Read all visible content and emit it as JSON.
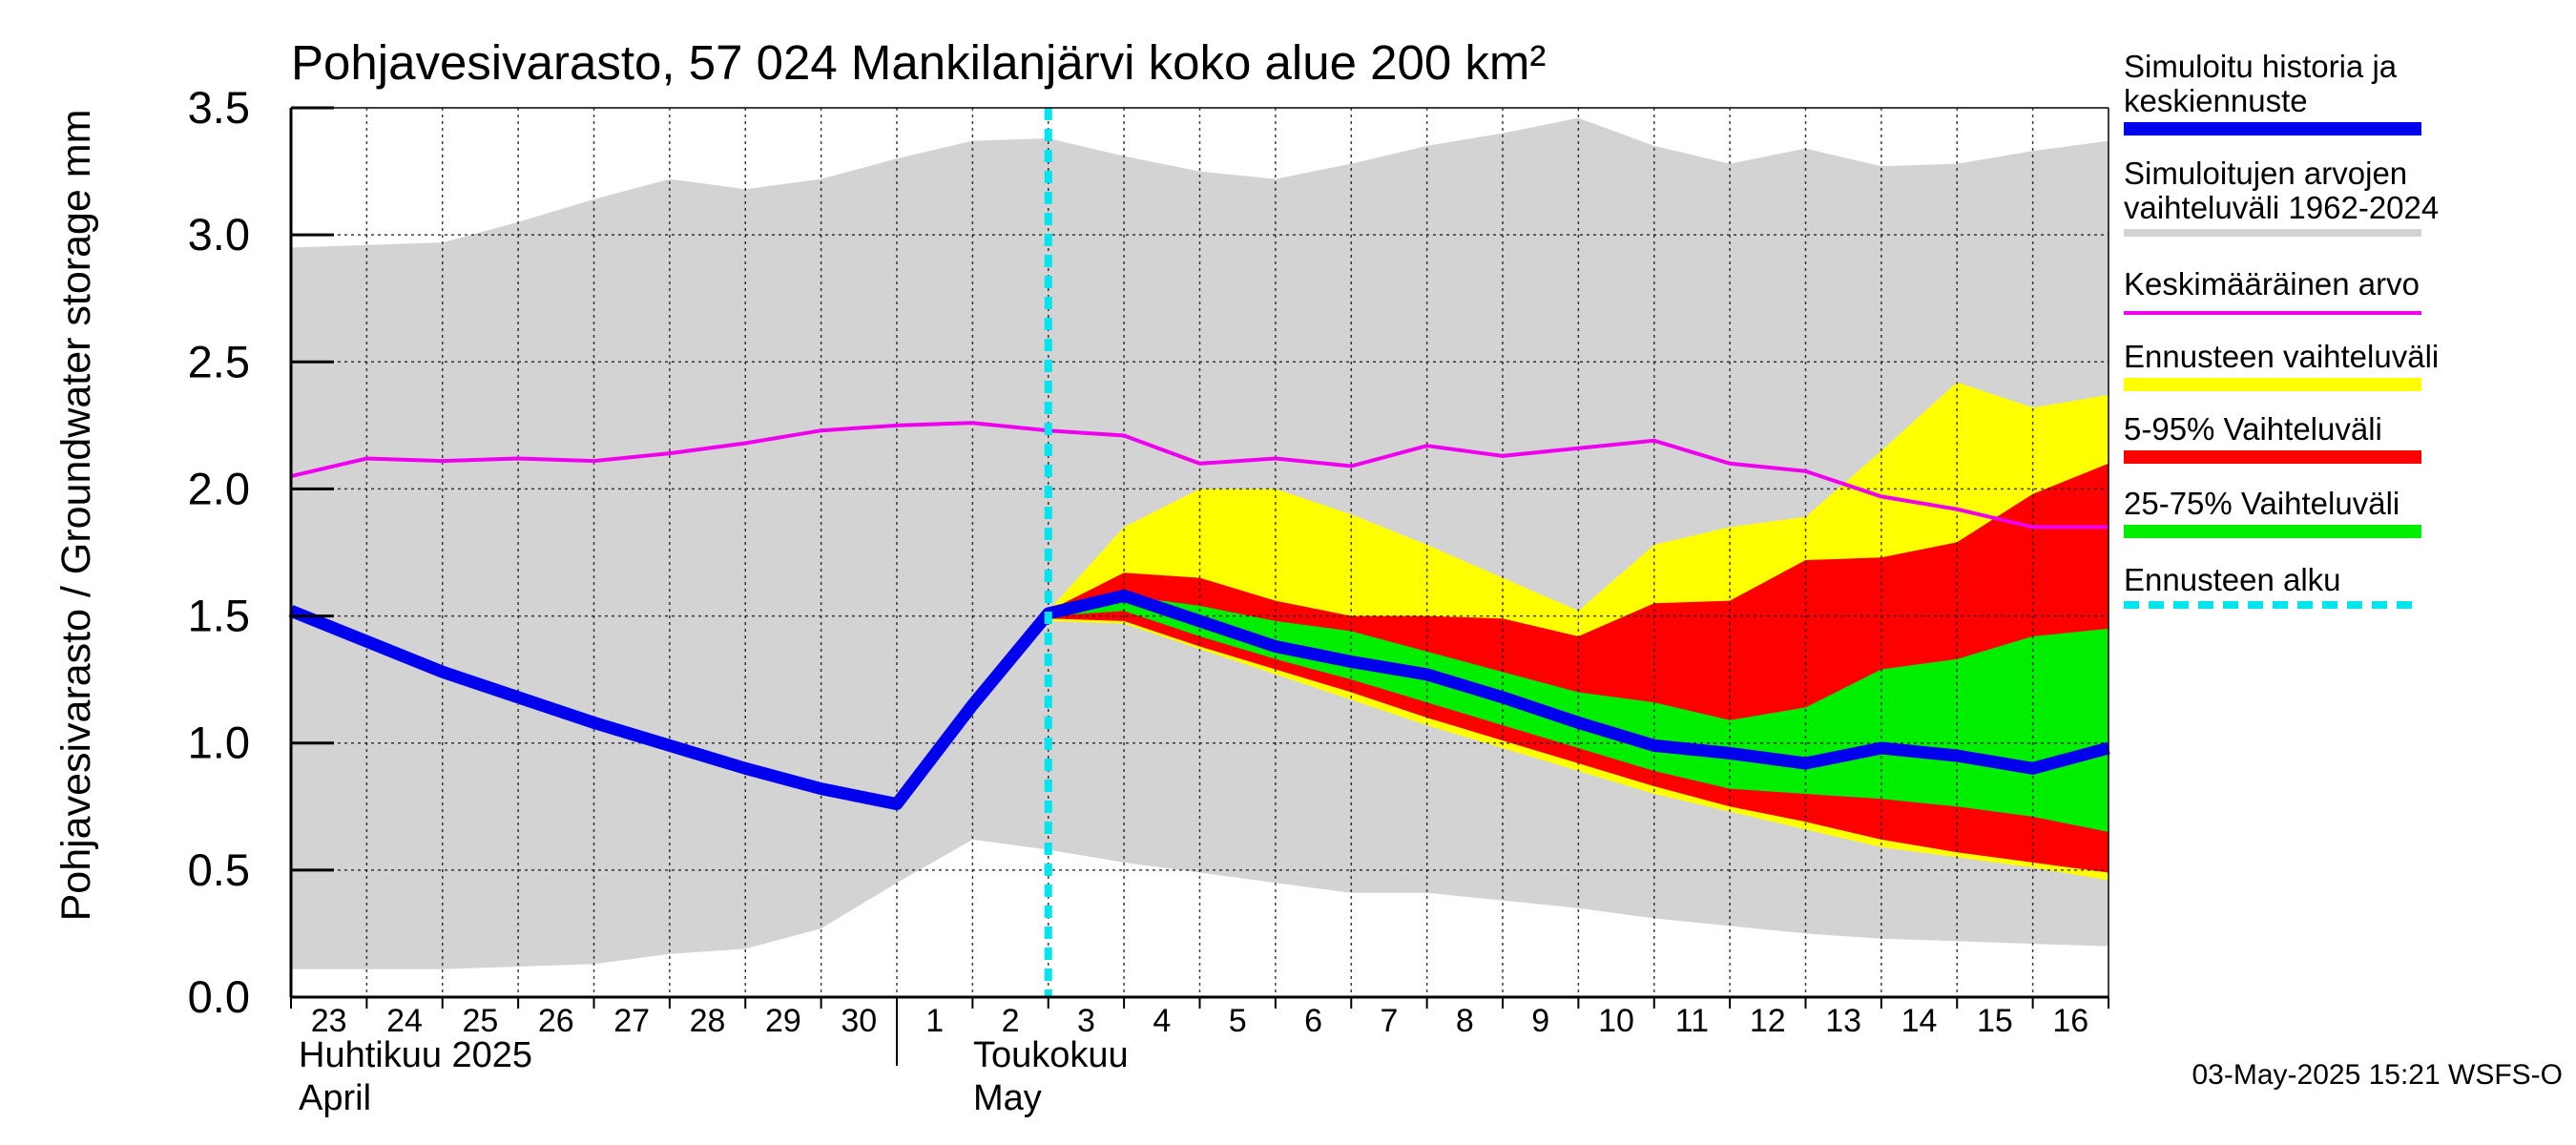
{
  "chart_data": {
    "type": "area",
    "title": "Pohjavesivarasto, 57 024 Mankilanjärvi koko alue 200 km²",
    "ylabel": "Pohjavesivarasto / Groundwater storage   mm",
    "ylim": [
      0,
      3.5
    ],
    "yticks": [
      "0.0",
      "0.5",
      "1.0",
      "1.5",
      "2.0",
      "2.5",
      "3.0",
      "3.5"
    ],
    "x_day_labels": [
      "23",
      "24",
      "25",
      "26",
      "27",
      "28",
      "29",
      "30",
      "1",
      "2",
      "3",
      "4",
      "5",
      "6",
      "7",
      "8",
      "9",
      "10",
      "11",
      "12",
      "13",
      "14",
      "15",
      "16"
    ],
    "month_labels": [
      {
        "fi": "Huhtikuu  2025",
        "en": "April"
      },
      {
        "fi": "Toukokuu",
        "en": "May"
      }
    ],
    "forecast_start_index": 10,
    "hist_range": {
      "upper": [
        2.95,
        2.96,
        2.97,
        3.05,
        3.14,
        3.22,
        3.18,
        3.22,
        3.3,
        3.37,
        3.38,
        3.31,
        3.25,
        3.22,
        3.28,
        3.35,
        3.4,
        3.46,
        3.35,
        3.28,
        3.34,
        3.27,
        3.28,
        3.33,
        3.37
      ],
      "lower": [
        0.11,
        0.11,
        0.11,
        0.12,
        0.13,
        0.17,
        0.19,
        0.27,
        0.45,
        0.62,
        0.58,
        0.53,
        0.49,
        0.45,
        0.41,
        0.41,
        0.38,
        0.35,
        0.31,
        0.28,
        0.25,
        0.23,
        0.22,
        0.21,
        0.2
      ]
    },
    "mean": [
      2.05,
      2.12,
      2.11,
      2.12,
      2.11,
      2.14,
      2.18,
      2.23,
      2.25,
      2.26,
      2.23,
      2.21,
      2.1,
      2.12,
      2.09,
      2.17,
      2.13,
      2.16,
      2.19,
      2.1,
      2.07,
      1.97,
      1.92,
      1.85,
      1.85
    ],
    "simulated": [
      1.52,
      1.4,
      1.28,
      1.18,
      1.08,
      0.99,
      0.9,
      0.82,
      0.76,
      1.15,
      1.51,
      1.58,
      1.48,
      1.38,
      1.32,
      1.27,
      1.18,
      1.08,
      0.99,
      0.96,
      0.92,
      0.98,
      0.95,
      0.9,
      0.98
    ],
    "forecast_range": {
      "upper": [
        1.52,
        1.85,
        2.0,
        2.0,
        1.9,
        1.78,
        1.65,
        1.52,
        1.78,
        1.85,
        1.89,
        2.15,
        2.42,
        2.32,
        2.37
      ],
      "lower": [
        1.48,
        1.47,
        1.37,
        1.27,
        1.17,
        1.07,
        0.98,
        0.89,
        0.8,
        0.73,
        0.66,
        0.59,
        0.55,
        0.51,
        0.46
      ]
    },
    "p5_95": {
      "upper": [
        1.52,
        1.67,
        1.65,
        1.56,
        1.5,
        1.5,
        1.49,
        1.42,
        1.55,
        1.56,
        1.72,
        1.73,
        1.79,
        1.98,
        2.1
      ],
      "lower": [
        1.49,
        1.48,
        1.38,
        1.29,
        1.2,
        1.1,
        1.01,
        0.92,
        0.83,
        0.75,
        0.69,
        0.62,
        0.57,
        0.53,
        0.49
      ]
    },
    "p25_75": {
      "upper": [
        1.51,
        1.58,
        1.54,
        1.48,
        1.44,
        1.36,
        1.28,
        1.2,
        1.16,
        1.09,
        1.14,
        1.29,
        1.33,
        1.42,
        1.45
      ],
      "lower": [
        1.5,
        1.52,
        1.42,
        1.33,
        1.25,
        1.16,
        1.07,
        0.98,
        0.89,
        0.82,
        0.8,
        0.78,
        0.75,
        0.71,
        0.65
      ]
    },
    "colors": {
      "hist_range": "#d3d3d3",
      "simulated": "#0000ee",
      "mean": "#ee00ee",
      "forecast_range": "#ffff00",
      "p5_95": "#ff0000",
      "p25_75": "#00ee00",
      "forecast_start": "#00e5ee"
    },
    "legend": [
      {
        "label": "Simuloitu historia ja\nkeskiennuste",
        "color": "#0000ee",
        "style": "thick"
      },
      {
        "label": "Simuloitujen arvojen\nvaihteluväli 1962-2024",
        "color": "#d3d3d3",
        "style": "thin"
      },
      {
        "label": "Keskimääräinen arvo",
        "color": "#ee00ee",
        "style": "line"
      },
      {
        "label": "Ennusteen vaihteluväli",
        "color": "#ffff00",
        "style": "thick"
      },
      {
        "label": "5-95% Vaihteluväli",
        "color": "#ff0000",
        "style": "thick"
      },
      {
        "label": "25-75% Vaihteluväli",
        "color": "#00ee00",
        "style": "thick"
      },
      {
        "label": "Ennusteen alku",
        "color": "#00e5ee",
        "style": "dashed"
      }
    ]
  },
  "footer": "03-May-2025 15:21 WSFS-O"
}
